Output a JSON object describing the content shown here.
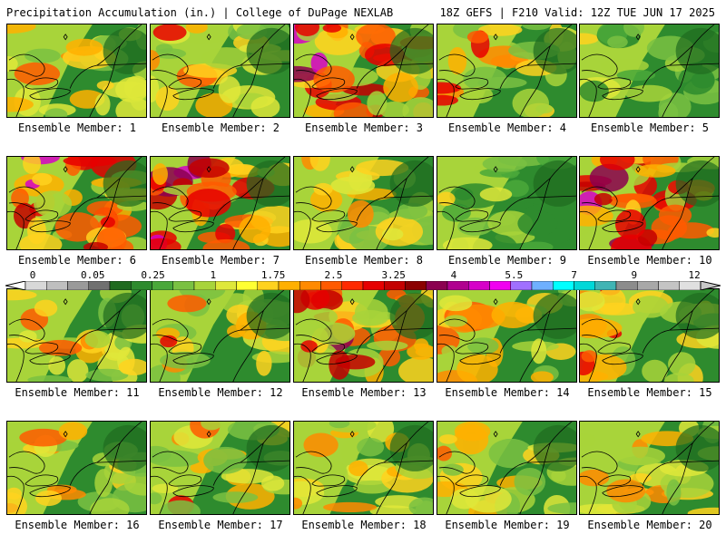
{
  "header": {
    "left_title": "Precipitation Accumulation (in.) | College of DuPage NEXLAB",
    "right_title": "18Z GEFS | F210 Valid: 12Z TUE JUN 17 2025"
  },
  "colorbar": {
    "tick_labels": [
      "0",
      "0.05",
      "0.25",
      "1",
      "1.75",
      "2.5",
      "3.25",
      "4",
      "5.5",
      "7",
      "9",
      "12"
    ],
    "colors": [
      "#d8d8d8",
      "#bfbfbf",
      "#9a9a9a",
      "#707070",
      "#1f6b1f",
      "#2e8b2e",
      "#4aa83a",
      "#7ac142",
      "#a8d43a",
      "#dfe83a",
      "#ffff33",
      "#ffd21f",
      "#ffb000",
      "#ff8a00",
      "#ff5a00",
      "#ff2a00",
      "#e60000",
      "#c40000",
      "#8b0000",
      "#8b0050",
      "#b0008f",
      "#d600c8",
      "#f000f0",
      "#a070ff",
      "#6fb0ff",
      "#00ffff",
      "#00d8d8",
      "#40b4b4",
      "#8c8c8c",
      "#a8a8a8",
      "#c4c4c4",
      "#e0e0e0"
    ]
  },
  "panels": [
    {
      "label": "Ensemble Member: 1",
      "level": "wet"
    },
    {
      "label": "Ensemble Member: 2",
      "level": "wet"
    },
    {
      "label": "Ensemble Member: 3",
      "level": "very-wet"
    },
    {
      "label": "Ensemble Member: 4",
      "level": "wet"
    },
    {
      "label": "Ensemble Member: 5",
      "level": "dry"
    },
    {
      "label": "Ensemble Member: 6",
      "level": "very-wet"
    },
    {
      "label": "Ensemble Member: 7",
      "level": "very-wet"
    },
    {
      "label": "Ensemble Member: 8",
      "level": "wet"
    },
    {
      "label": "Ensemble Member: 9",
      "level": "dry"
    },
    {
      "label": "Ensemble Member: 10",
      "level": "very-wet"
    },
    {
      "label": "Ensemble Member: 11",
      "level": "wet"
    },
    {
      "label": "Ensemble Member: 12",
      "level": "wet"
    },
    {
      "label": "Ensemble Member: 13",
      "level": "very-wet"
    },
    {
      "label": "Ensemble Member: 14",
      "level": "wet"
    },
    {
      "label": "Ensemble Member: 15",
      "level": "wet"
    },
    {
      "label": "Ensemble Member: 16",
      "level": "wet"
    },
    {
      "label": "Ensemble Member: 17",
      "level": "wet"
    },
    {
      "label": "Ensemble Member: 18",
      "level": "wet"
    },
    {
      "label": "Ensemble Member: 19",
      "level": "wet"
    },
    {
      "label": "Ensemble Member: 20",
      "level": "wet"
    }
  ]
}
